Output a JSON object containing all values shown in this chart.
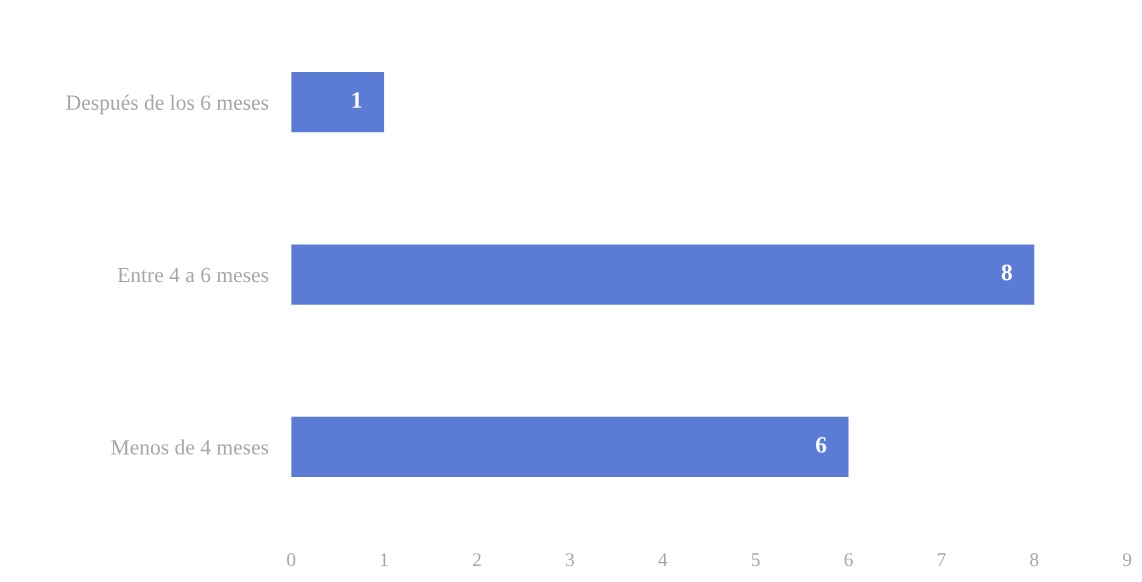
{
  "chart_data": {
    "type": "bar",
    "orientation": "horizontal",
    "categories": [
      "Después de los 6 meses",
      "Entre 4 a 6 meses",
      "Menos de 4 meses"
    ],
    "values": [
      1,
      8,
      6
    ],
    "color": "#5b7bd5",
    "xlim": [
      0,
      9
    ],
    "xticks": [
      0,
      1,
      2,
      3,
      4,
      5,
      6,
      7,
      8,
      9
    ],
    "data_labels": true,
    "grid": false
  }
}
